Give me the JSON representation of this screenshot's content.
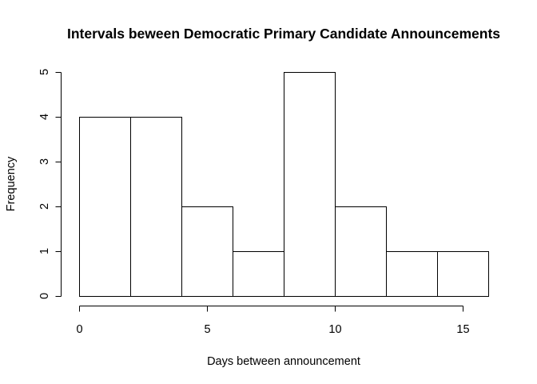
{
  "chart_data": {
    "type": "bar",
    "title": "Intervals beween Democratic Primary Candidate Announcements",
    "xlabel": "Days between announcement",
    "ylabel": "Frequency",
    "bins": [
      [
        0,
        2
      ],
      [
        2,
        4
      ],
      [
        4,
        6
      ],
      [
        6,
        8
      ],
      [
        8,
        10
      ],
      [
        10,
        12
      ],
      [
        12,
        14
      ],
      [
        14,
        16
      ]
    ],
    "values": [
      4,
      4,
      2,
      1,
      5,
      2,
      1,
      1
    ],
    "xlim": [
      0,
      16
    ],
    "ylim": [
      0,
      5
    ],
    "xticks": [
      0,
      5,
      10,
      15
    ],
    "yticks": [
      0,
      1,
      2,
      3,
      4,
      5
    ],
    "grid": false,
    "colors": {
      "bar_fill": "#ffffff",
      "bar_stroke": "#000000"
    }
  }
}
